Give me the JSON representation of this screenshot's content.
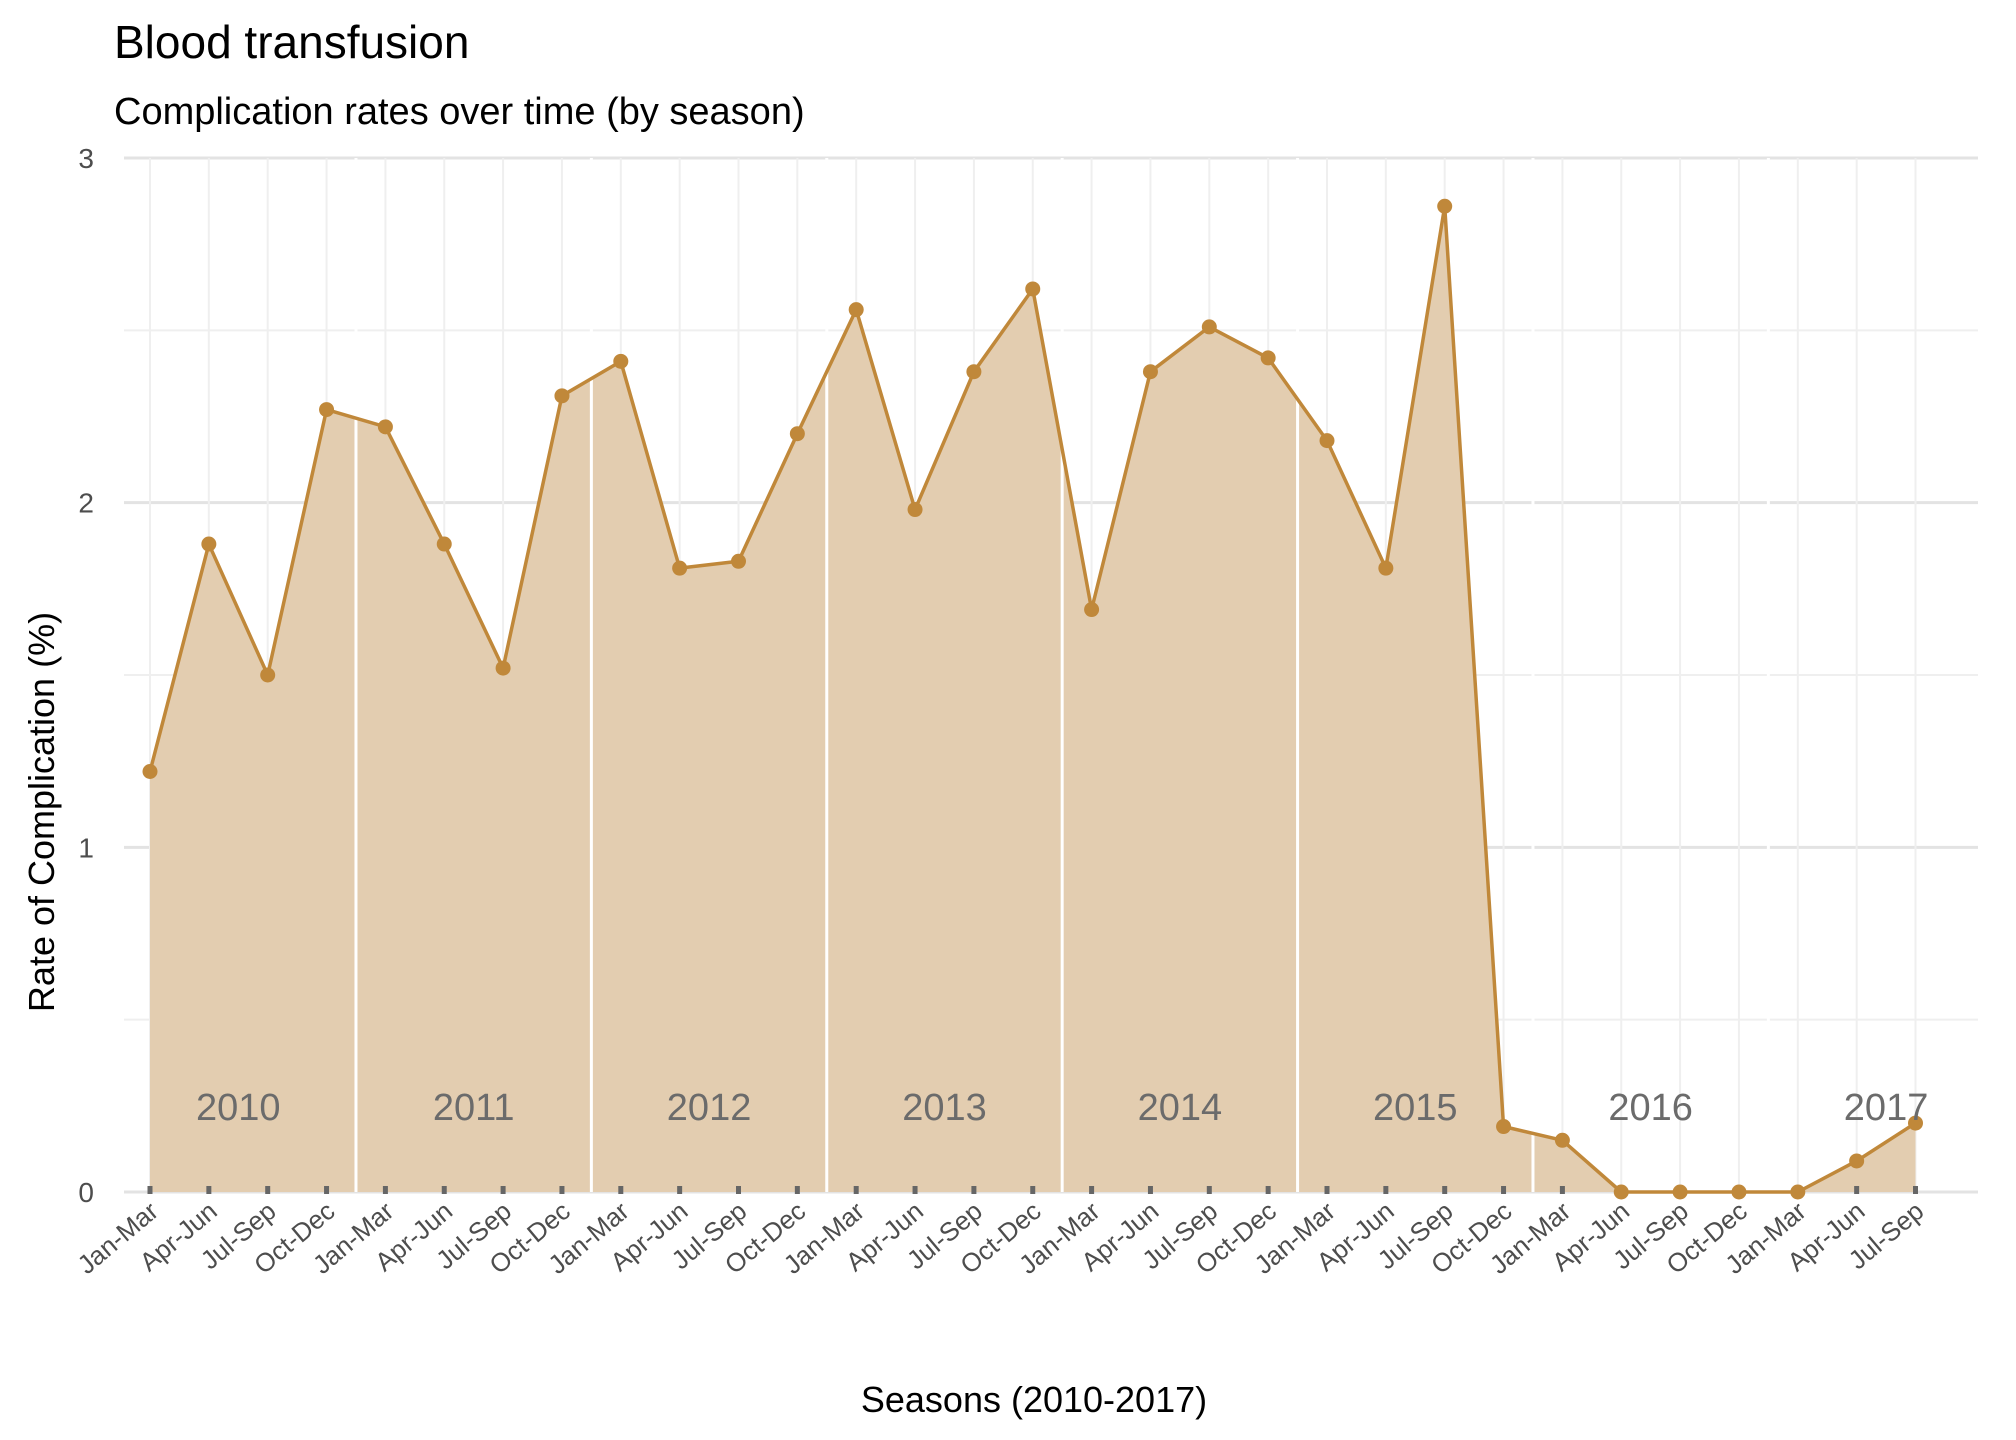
{
  "chart_data": {
    "type": "area",
    "title": "Blood transfusion",
    "subtitle": "Complication rates over time (by season)",
    "xlabel": "Seasons (2010-2017)",
    "ylabel": "Rate of Complication (%)",
    "ylim": [
      0,
      3
    ],
    "yticks": [
      "0",
      "1",
      "2",
      "3"
    ],
    "grid": true,
    "legend": "none",
    "colors": {
      "line": "#c0883a",
      "fill": "#e3cdb0",
      "year_divider": "#ffffff",
      "year_label": "#6b6b6b"
    },
    "categories": [
      "Jan-Mar",
      "Apr-Jun",
      "Jul-Sep",
      "Oct-Dec",
      "Jan-Mar",
      "Apr-Jun",
      "Jul-Sep",
      "Oct-Dec",
      "Jan-Mar",
      "Apr-Jun",
      "Jul-Sep",
      "Oct-Dec",
      "Jan-Mar",
      "Apr-Jun",
      "Jul-Sep",
      "Oct-Dec",
      "Jan-Mar",
      "Apr-Jun",
      "Jul-Sep",
      "Oct-Dec",
      "Jan-Mar",
      "Apr-Jun",
      "Jul-Sep",
      "Oct-Dec",
      "Jan-Mar",
      "Apr-Jun",
      "Jul-Sep",
      "Oct-Dec",
      "Jan-Mar",
      "Apr-Jun",
      "Jul-Sep"
    ],
    "values": [
      1.22,
      1.88,
      1.5,
      2.27,
      2.22,
      1.88,
      1.52,
      2.31,
      2.41,
      1.81,
      1.83,
      2.2,
      2.56,
      1.98,
      2.38,
      2.62,
      1.69,
      2.38,
      2.51,
      2.42,
      2.18,
      1.81,
      2.86,
      0.19,
      0.15,
      0.0,
      0.0,
      0.0,
      0.0,
      0.09,
      0.2
    ],
    "year_labels": [
      "2010",
      "2011",
      "2012",
      "2013",
      "2014",
      "2015",
      "2016",
      "2017"
    ]
  }
}
